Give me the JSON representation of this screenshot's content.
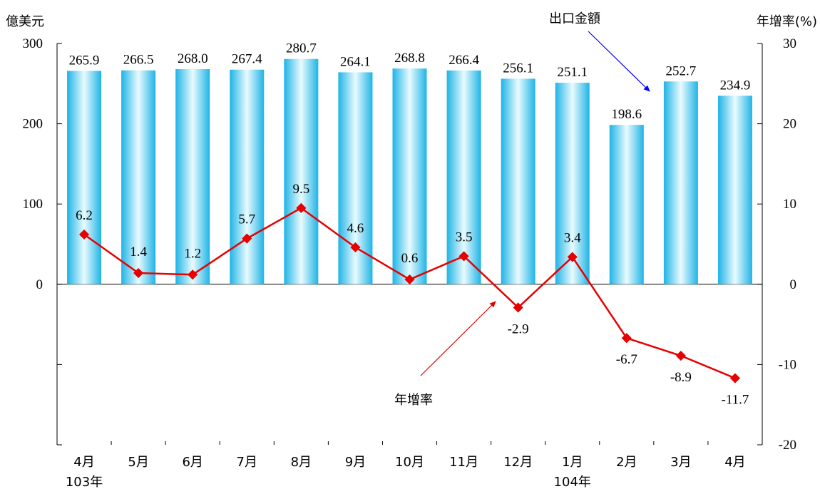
{
  "chart_data": {
    "type": "bar+line",
    "categories": [
      "4月",
      "5月",
      "6月",
      "7月",
      "8月",
      "9月",
      "10月",
      "11月",
      "12月",
      "1月",
      "2月",
      "3月",
      "4月"
    ],
    "year_labels": [
      "103年",
      "",
      "",
      "",
      "",
      "",
      "",
      "",
      "",
      "104年",
      "",
      "",
      ""
    ],
    "series": [
      {
        "name": "出口金額",
        "type": "bar",
        "axis": "left",
        "values": [
          265.9,
          266.5,
          268.0,
          267.4,
          280.7,
          264.1,
          268.8,
          266.4,
          256.1,
          251.1,
          198.6,
          252.7,
          234.9
        ],
        "labels": [
          "265.9",
          "266.5",
          "268.0",
          "267.4",
          "280.7",
          "264.1",
          "268.8",
          "266.4",
          "256.1",
          "251.1",
          "198.6",
          "252.7",
          "234.9"
        ]
      },
      {
        "name": "年增率",
        "type": "line",
        "axis": "right",
        "values": [
          6.2,
          1.4,
          1.2,
          5.7,
          9.5,
          4.6,
          0.6,
          3.5,
          -2.9,
          3.4,
          -6.7,
          -8.9,
          -11.7
        ],
        "labels": [
          "6.2",
          "1.4",
          "1.2",
          "5.7",
          "9.5",
          "4.6",
          "0.6",
          "3.5",
          "-2.9",
          "3.4",
          "-6.7",
          "-8.9",
          "-11.7"
        ]
      }
    ],
    "y_left": {
      "label": "億美元",
      "ticks": [
        "0",
        "100",
        "200",
        "300"
      ],
      "lim": [
        -200,
        300
      ]
    },
    "y_right": {
      "label": "年增率(%)",
      "ticks": [
        "-20",
        "-10",
        "0",
        "10",
        "20",
        "30"
      ],
      "lim": [
        -20,
        30
      ]
    },
    "annotations": {
      "bar_callout": "出口金額",
      "line_callout": "年增率"
    },
    "colors": {
      "bar_light": "#e9fbff",
      "bar_dark": "#1fb4e6",
      "line": "#e60000",
      "bar_arrow": "#0000ff",
      "line_arrow": "#e60000"
    }
  }
}
